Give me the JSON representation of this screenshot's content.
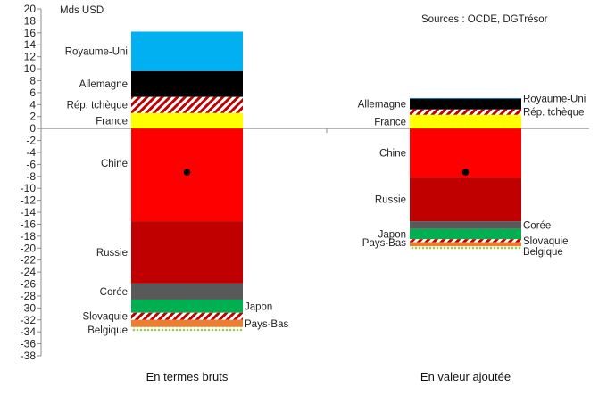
{
  "chart_data": {
    "type": "bar",
    "subtype": "stacked",
    "unit_label": "Mds USD",
    "source": "Sources : OCDE, DGTrésor",
    "ylim": [
      -38,
      20
    ],
    "yticks": [
      20,
      18,
      16,
      14,
      12,
      10,
      8,
      6,
      4,
      2,
      0,
      -2,
      -4,
      -6,
      -8,
      -10,
      -12,
      -14,
      -16,
      -18,
      -20,
      -22,
      -24,
      -26,
      -28,
      -30,
      -32,
      -34,
      -36,
      -38
    ],
    "categories": [
      "En termes bruts",
      "En valeur ajoutée"
    ],
    "grid": false,
    "series": [
      {
        "name": "France",
        "color": "#ffff00",
        "pattern": "solid",
        "values": [
          2.6,
          2.3
        ]
      },
      {
        "name": "Rép. tchèque",
        "color": "#c00000",
        "pattern": "stripes",
        "values": [
          2.7,
          0.9
        ]
      },
      {
        "name": "Allemagne",
        "color": "#000000",
        "pattern": "solid",
        "values": [
          4.3,
          1.8
        ]
      },
      {
        "name": "Royaume-Uni",
        "color": "#00b0f0",
        "pattern": "solid",
        "values": [
          6.6,
          0.1
        ]
      },
      {
        "name": "Chine",
        "color": "#ff0000",
        "pattern": "solid",
        "values": [
          -15.5,
          -8.2
        ]
      },
      {
        "name": "Russie",
        "color": "#c00000",
        "pattern": "solid",
        "values": [
          -10.4,
          -7.3
        ]
      },
      {
        "name": "Corée",
        "color": "#595959",
        "pattern": "solid",
        "values": [
          -2.7,
          -1.3
        ]
      },
      {
        "name": "Japon",
        "color": "#00b050",
        "pattern": "solid",
        "values": [
          -2.2,
          -1.7
        ]
      },
      {
        "name": "Slovaquie",
        "color": "#c00000",
        "pattern": "stripes",
        "values": [
          -1.2,
          -0.5
        ]
      },
      {
        "name": "Pays-Bas",
        "color": "#ed7d31",
        "pattern": "solid",
        "values": [
          -1.2,
          -0.7
        ]
      },
      {
        "name": "Belgique",
        "color": "#92d050",
        "pattern": "dots",
        "values": [
          -0.9,
          -0.5
        ]
      }
    ],
    "net_balance": [
      -7.3,
      -7.3
    ]
  }
}
